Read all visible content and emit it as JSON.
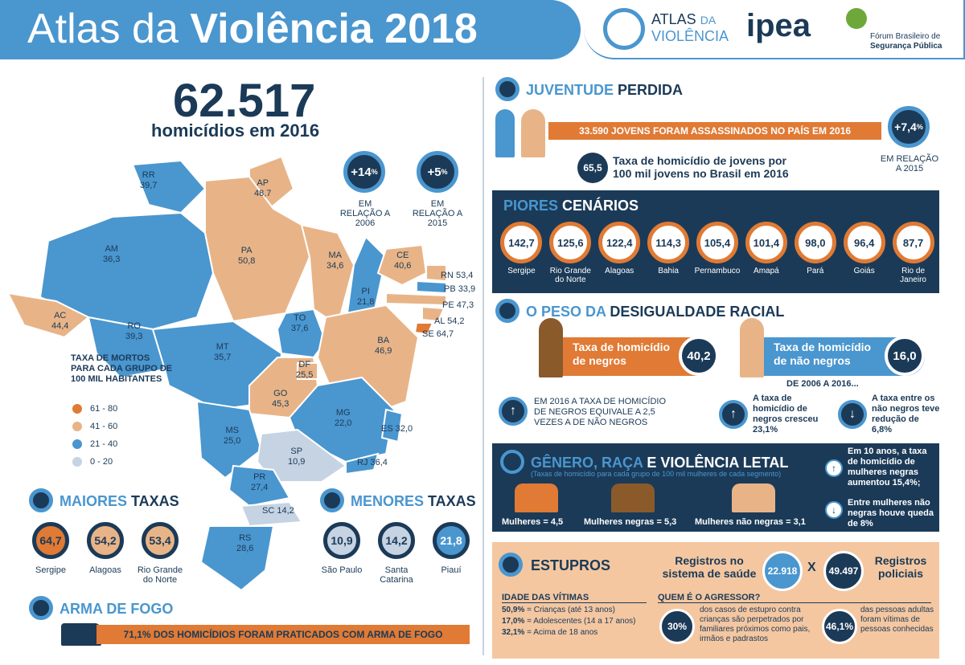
{
  "header": {
    "title_a": "Atlas da ",
    "title_b": "Violência 2018"
  },
  "logos": {
    "atlas_a": "ATLAS",
    "atlas_b": "DA",
    "atlas_c": "VIOLÊNCIA",
    "ipea": "ipea",
    "forum_a": "Fórum Brasileiro de",
    "forum_b": "Segurança Pública"
  },
  "headline": {
    "number": "62.517",
    "text": "homicídios em 2016"
  },
  "growth": [
    {
      "value": "+14",
      "unit": "%",
      "label": "EM RELAÇÃO A 2006"
    },
    {
      "value": "+5",
      "unit": "%",
      "label": "EM RELAÇÃO A 2015"
    }
  ],
  "states": [
    {
      "uf": "RR",
      "v": "39,7"
    },
    {
      "uf": "AP",
      "v": "48,7"
    },
    {
      "uf": "AM",
      "v": "36,3"
    },
    {
      "uf": "PA",
      "v": "50,8"
    },
    {
      "uf": "MA",
      "v": "34,6"
    },
    {
      "uf": "CE",
      "v": "40,6"
    },
    {
      "uf": "RN",
      "v": "53,4"
    },
    {
      "uf": "PB",
      "v": "33,9"
    },
    {
      "uf": "PE",
      "v": "47,3"
    },
    {
      "uf": "AL",
      "v": "54,2"
    },
    {
      "uf": "SE",
      "v": "64,7"
    },
    {
      "uf": "PI",
      "v": "21,8"
    },
    {
      "uf": "AC",
      "v": "44,4"
    },
    {
      "uf": "RO",
      "v": "39,3"
    },
    {
      "uf": "TO",
      "v": "37,6"
    },
    {
      "uf": "BA",
      "v": "46,9"
    },
    {
      "uf": "MT",
      "v": "35,7"
    },
    {
      "uf": "DF",
      "v": "25,5"
    },
    {
      "uf": "GO",
      "v": "45,3"
    },
    {
      "uf": "MG",
      "v": "22,0"
    },
    {
      "uf": "ES",
      "v": "32,0"
    },
    {
      "uf": "MS",
      "v": "25,0"
    },
    {
      "uf": "SP",
      "v": "10,9"
    },
    {
      "uf": "RJ",
      "v": "36,4"
    },
    {
      "uf": "PR",
      "v": "27,4"
    },
    {
      "uf": "SC",
      "v": "14,2"
    },
    {
      "uf": "RS",
      "v": "28,6"
    }
  ],
  "legend": {
    "title": "TAXA DE MORTOS PARA CADA GRUPO DE 100 MIL HABITANTES",
    "items": [
      {
        "label": "61 - 80",
        "color": "#e07a34"
      },
      {
        "label": "41 - 60",
        "color": "#e8b487"
      },
      {
        "label": "21 - 40",
        "color": "#4a96cf"
      },
      {
        "label": "0 - 20",
        "color": "#c5d3e3"
      }
    ]
  },
  "maiores": {
    "title_a": "MAIORES ",
    "title_b": "TAXAS",
    "items": [
      {
        "v": "64,7",
        "label": "Sergipe"
      },
      {
        "v": "54,2",
        "label": "Alagoas"
      },
      {
        "v": "53,4",
        "label": "Rio Grande do Norte"
      }
    ]
  },
  "menores": {
    "title_a": "MENORES ",
    "title_b": "TAXAS",
    "items": [
      {
        "v": "10,9",
        "label": "São Paulo"
      },
      {
        "v": "14,2",
        "label": "Santa Catarina"
      },
      {
        "v": "21,8",
        "label": "Piauí"
      }
    ]
  },
  "arma": {
    "title": "ARMA DE FOGO",
    "text": "71,1% DOS HOMICÍDIOS FORAM PRATICADOS COM ARMA DE FOGO"
  },
  "juventude": {
    "title_a": "JUVENTUDE ",
    "title_b": "PERDIDA",
    "bar": "33.590 JOVENS FORAM ASSASSINADOS NO PAÍS EM 2016",
    "rate": "65,5",
    "rate_text": "Taxa de homicídio de jovens por 100 mil jovens no Brasil em 2016",
    "growth": "+7,4",
    "growth_unit": "%",
    "growth_label": "EM RELAÇÃO A 2015"
  },
  "piores": {
    "title_a": "PIORES ",
    "title_b": "CENÁRIOS",
    "items": [
      {
        "v": "142,7",
        "label": "Sergipe"
      },
      {
        "v": "125,6",
        "label": "Rio Grande do Norte"
      },
      {
        "v": "122,4",
        "label": "Alagoas"
      },
      {
        "v": "114,3",
        "label": "Bahia"
      },
      {
        "v": "105,4",
        "label": "Pernambuco"
      },
      {
        "v": "101,4",
        "label": "Amapá"
      },
      {
        "v": "98,0",
        "label": "Pará"
      },
      {
        "v": "96,4",
        "label": "Goiás"
      },
      {
        "v": "87,7",
        "label": "Rio de Janeiro"
      }
    ]
  },
  "racial": {
    "title_a": "O PESO DA ",
    "title_b": "DESIGUALDADE RACIAL",
    "negros_label": "Taxa de homicídio de negros",
    "negros_v": "40,2",
    "nao_label": "Taxa de homicídio de não negros",
    "nao_v": "16,0",
    "periodo": "DE 2006 A 2016...",
    "text1": "EM 2016 A TAXA DE HOMICÍDIO DE NEGROS EQUIVALE A 2,5 VEZES A DE NÃO NEGROS",
    "text2_a": "A taxa de homicídio de negros cresceu",
    "text2_b": "23,1%",
    "text3_a": "A taxa entre os não negros teve redução de",
    "text3_b": "6,8%"
  },
  "genero": {
    "title_a": "GÊNERO, RAÇA ",
    "title_b": "E VIOLÊNCIA LETAL",
    "sub": "(Taxas de homicídio para cada grupo de 100 mil mulheres de cada segmento)",
    "m1": "Mulheres = 4,5",
    "m2": "Mulheres negras = 5,3",
    "m3": "Mulheres não negras = 3,1",
    "up_a": "Em 10 anos, a taxa de homicídio de mulheres negras aumentou",
    "up_b": "15,4%;",
    "down_a": "Entre mulheres não negras houve queda de",
    "down_b": "8%"
  },
  "estupros": {
    "title": "ESTUPROS",
    "saude_label": "Registros no sistema de saúde",
    "saude_v": "22.918",
    "x": "X",
    "policia_v": "49.497",
    "policia_label": "Registros policiais",
    "idade_title": "IDADE DAS VÍTIMAS",
    "idade": [
      {
        "p": "50,9%",
        "t": "= Crianças (até 13 anos)"
      },
      {
        "p": "17,0%",
        "t": "= Adolescentes (14 a 17 anos)"
      },
      {
        "p": "32,1%",
        "t": "= Acima de 18 anos"
      }
    ],
    "agressor_title": "QUEM É O AGRESSOR?",
    "a1_v": "30%",
    "a1_t": "dos casos de estupro contra crianças são perpetrados por familiares próximos como pais, irmãos e padrastos",
    "a2_v": "46,1%",
    "a2_t": "das pessoas adultas foram vítimas de pessoas conhecidas"
  }
}
